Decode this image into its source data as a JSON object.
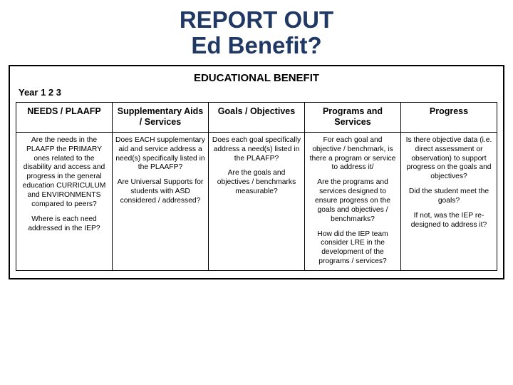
{
  "title_line1": "REPORT OUT",
  "title_line2": "Ed Benefit?",
  "banner": "EDUCATIONAL BENEFIT",
  "year_label": "Year  1  2  3",
  "table": {
    "headers": [
      "NEEDS / PLAAFP",
      "Supplementary Aids / Services",
      "Goals / Objectives",
      "Programs and Services",
      "Progress"
    ],
    "cells": {
      "c0p0": "Are the needs in the PLAAFP the PRIMARY ones related to the disability and access and progress in the general education CURRICULUM and ENVIRONMENTS compared to peers?",
      "c0p1": "Where is each need addressed in the IEP?",
      "c1p0": "Does EACH supplementary aid and service address a need(s) specifically listed in the PLAAFP?",
      "c1p1": "Are Universal Supports for students with ASD considered / addressed?",
      "c2p0": "Does each goal specifically address a need(s) listed in the PLAAFP?",
      "c2p1": "Are the goals and objectives / benchmarks measurable?",
      "c3p0": "For each goal and objective / benchmark, is there a program or service to address it/",
      "c3p1": "Are the programs and services designed to ensure progress on the goals and objectives / benchmarks?",
      "c3p2": "How did the IEP team consider LRE in the development of the programs / services?",
      "c4p0": "Is there objective data (i.e. direct assessment or observation) to support progress on the goals and objectives?",
      "c4p1": "Did the student meet the goals?",
      "c4p2": "If not, was the IEP re-designed to address it?"
    }
  },
  "style": {
    "title_color": "#203864",
    "border_color": "#000000",
    "background": "#ffffff",
    "title_fontsize": 33,
    "banner_fontsize": 15,
    "header_fontsize": 12.5,
    "body_fontsize": 10.3
  }
}
